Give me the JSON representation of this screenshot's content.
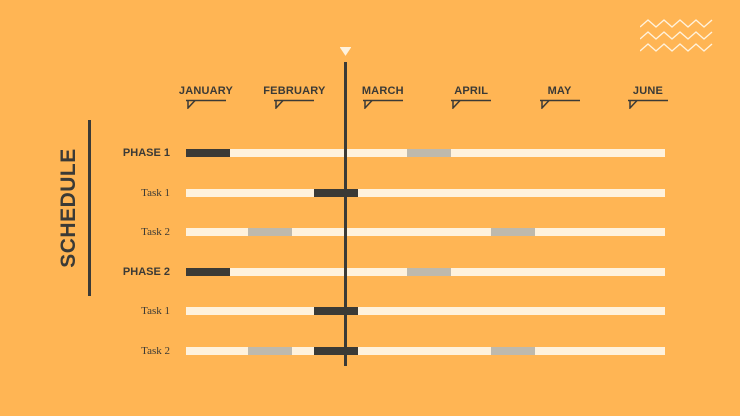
{
  "title": "SCHEDULE",
  "months": [
    "JANUARY",
    "FEBRUARY",
    "MARCH",
    "APRIL",
    "MAY",
    "JUNE"
  ],
  "rows": [
    {
      "label": "PHASE 1",
      "kind": "phase",
      "bars": [
        {
          "start": 0.0,
          "end": 0.5,
          "tone": "dark"
        },
        {
          "start": 2.5,
          "end": 3.0,
          "tone": "gray"
        }
      ]
    },
    {
      "label": "Task 1",
      "kind": "task",
      "bars": [
        {
          "start": 1.45,
          "end": 1.95,
          "tone": "dark"
        }
      ]
    },
    {
      "label": "Task 2",
      "kind": "task",
      "bars": [
        {
          "start": 0.7,
          "end": 1.2,
          "tone": "gray"
        },
        {
          "start": 3.45,
          "end": 3.95,
          "tone": "gray"
        }
      ]
    },
    {
      "label": "PHASE 2",
      "kind": "phase",
      "bars": [
        {
          "start": 0.0,
          "end": 0.5,
          "tone": "dark"
        },
        {
          "start": 2.5,
          "end": 3.0,
          "tone": "gray"
        }
      ]
    },
    {
      "label": "Task 1",
      "kind": "task",
      "bars": [
        {
          "start": 1.45,
          "end": 1.95,
          "tone": "dark"
        }
      ]
    },
    {
      "label": "Task 2",
      "kind": "task",
      "bars": [
        {
          "start": 0.7,
          "end": 1.2,
          "tone": "gray"
        },
        {
          "start": 1.45,
          "end": 1.95,
          "tone": "dark"
        },
        {
          "start": 3.45,
          "end": 3.95,
          "tone": "gray"
        }
      ]
    }
  ],
  "today_position": 1.32,
  "colors": {
    "background": "#FFB554",
    "dark": "#3b3a36",
    "track": "#FFF2DD",
    "gray": "#BEB9AD",
    "zigzag": "#FFF2DD"
  }
}
